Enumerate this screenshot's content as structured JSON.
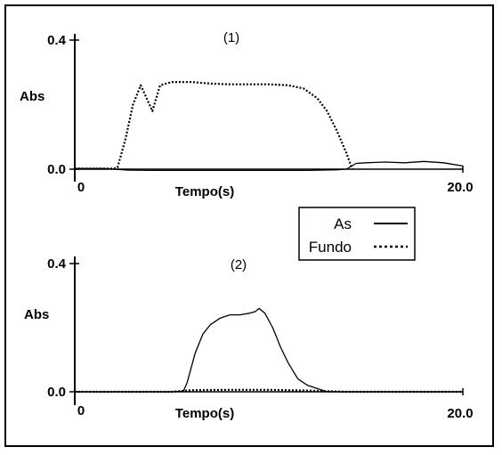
{
  "chart_data": [
    {
      "type": "line",
      "panel_label": "(1)",
      "ylabel": "Abs",
      "xlabel": "Tempo(s)",
      "y_ticks": [
        "0.4",
        "0.0"
      ],
      "x_ticks": [
        "0",
        "20.0"
      ],
      "xlim": [
        0,
        20
      ],
      "ylim": [
        0,
        0.4
      ],
      "series": [
        {
          "name": "As",
          "style": "solid",
          "x": [
            0,
            1.5,
            2.0,
            2.8,
            4,
            6,
            8,
            10,
            12,
            13.5,
            14.0,
            14.5,
            15,
            16,
            17,
            18,
            19,
            20
          ],
          "y": [
            0.002,
            0.002,
            0.0,
            -0.003,
            -0.004,
            -0.004,
            -0.004,
            -0.004,
            -0.004,
            -0.002,
            0.0,
            0.018,
            0.02,
            0.022,
            0.02,
            0.024,
            0.02,
            0.01
          ]
        },
        {
          "name": "Fundo",
          "style": "dotted",
          "x": [
            0,
            1.5,
            2.0,
            2.2,
            2.6,
            3.0,
            3.4,
            3.7,
            4.0,
            4.4,
            5.0,
            6,
            7,
            8,
            9,
            10,
            11,
            11.8,
            12.5,
            13.0,
            13.5,
            14.0,
            14.3
          ],
          "y": [
            0.002,
            0.002,
            0.002,
            0.005,
            0.09,
            0.2,
            0.26,
            0.22,
            0.18,
            0.26,
            0.27,
            0.27,
            0.265,
            0.263,
            0.263,
            0.263,
            0.26,
            0.25,
            0.22,
            0.18,
            0.12,
            0.05,
            0.0
          ]
        }
      ]
    },
    {
      "type": "line",
      "panel_label": "(2)",
      "ylabel": "Abs",
      "xlabel": "Tempo(s)",
      "y_ticks": [
        "0.4",
        "0.0"
      ],
      "x_ticks": [
        "0",
        "20.0"
      ],
      "xlim": [
        0,
        20
      ],
      "ylim": [
        0,
        0.4
      ],
      "series": [
        {
          "name": "As",
          "style": "solid",
          "x": [
            0,
            5,
            5.6,
            5.8,
            6.2,
            6.6,
            7.0,
            7.5,
            8.0,
            8.5,
            9.0,
            9.3,
            9.5,
            9.8,
            10.2,
            10.6,
            11.0,
            11.5,
            12.0,
            12.5,
            13.0,
            14,
            17,
            20
          ],
          "y": [
            0.0,
            0.0,
            0.002,
            0.03,
            0.12,
            0.18,
            0.21,
            0.23,
            0.24,
            0.24,
            0.245,
            0.25,
            0.26,
            0.245,
            0.2,
            0.14,
            0.09,
            0.04,
            0.02,
            0.01,
            0.0,
            0.0,
            0.0,
            0.0
          ]
        },
        {
          "name": "Fundo",
          "style": "dotted",
          "x": [
            0,
            5,
            6,
            8,
            10,
            12,
            14,
            17,
            20
          ],
          "y": [
            0.0,
            0.0,
            0.005,
            0.006,
            0.006,
            0.004,
            0.0,
            0.0,
            0.0
          ]
        }
      ]
    }
  ],
  "legend": {
    "placement": "center-right",
    "entries": [
      {
        "label": "As",
        "style": "solid"
      },
      {
        "label": "Fundo",
        "style": "dotted"
      }
    ]
  }
}
